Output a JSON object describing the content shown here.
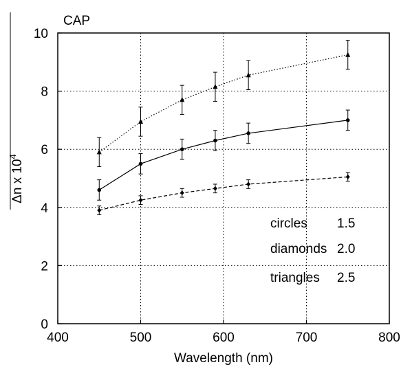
{
  "chart_data": {
    "type": "line",
    "title": "CAP",
    "xlabel": "Wavelength (nm)",
    "ylabel_base": "Δn x 10",
    "ylabel_exp": "4",
    "xlim": [
      400,
      800
    ],
    "ylim": [
      0,
      10
    ],
    "xticks": [
      400,
      500,
      600,
      700,
      800
    ],
    "yticks": [
      0,
      2,
      4,
      6,
      8,
      10
    ],
    "grid": true,
    "series": [
      {
        "marker": "triangle",
        "line_style": "dotted",
        "x": [
          450,
          500,
          550,
          590,
          630,
          750
        ],
        "y": [
          5.9,
          6.95,
          7.7,
          8.15,
          8.55,
          9.25
        ],
        "err": [
          0.5,
          0.5,
          0.5,
          0.5,
          0.5,
          0.5
        ]
      },
      {
        "marker": "circle",
        "line_style": "solid",
        "x": [
          450,
          500,
          550,
          590,
          630,
          750
        ],
        "y": [
          4.6,
          5.5,
          6.0,
          6.3,
          6.55,
          7.0
        ],
        "err": [
          0.35,
          0.35,
          0.35,
          0.35,
          0.35,
          0.35
        ]
      },
      {
        "marker": "diamond",
        "line_style": "dashed",
        "x": [
          450,
          500,
          550,
          590,
          630,
          750
        ],
        "y": [
          3.9,
          4.25,
          4.5,
          4.65,
          4.8,
          5.05
        ],
        "err": [
          0.15,
          0.15,
          0.15,
          0.15,
          0.15,
          0.15
        ]
      }
    ],
    "annotations": [
      {
        "label": "circles",
        "value": "1.5"
      },
      {
        "label": "diamonds",
        "value": "2.0"
      },
      {
        "label": "triangles",
        "value": "2.5"
      }
    ]
  }
}
